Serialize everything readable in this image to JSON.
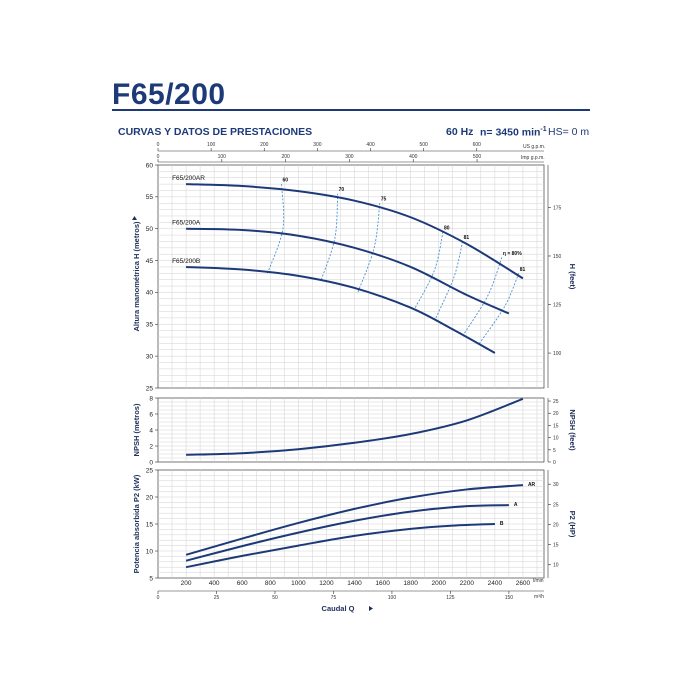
{
  "header": {
    "title": "F65/200",
    "subtitle": "CURVAS Y DATOS DE PRESTACIONES",
    "frequency": "60 Hz",
    "speed": "n= 3450 min",
    "speed_exp": "-1",
    "hs": "HS= 0 m"
  },
  "colors": {
    "curve": "#1d3a78",
    "efficiency": "#4a90d0",
    "grid": "#d2d2d2",
    "text": "#1d3a78"
  },
  "chart_data": [
    {
      "type": "line",
      "ylabel": "Altura manométrica H  (metros)",
      "y2label": "H (feet)",
      "ylim": [
        25,
        60
      ],
      "yticks": [
        25,
        30,
        35,
        40,
        45,
        50,
        55,
        60
      ],
      "y2ticks": [
        100,
        125,
        150,
        175
      ],
      "xlim": [
        0,
        2750
      ],
      "grid": true,
      "top_axes": {
        "us": {
          "label": "US g.p.m.",
          "ticks": [
            0,
            100,
            200,
            300,
            400,
            500,
            600
          ]
        },
        "imp": {
          "label": "Imp g.p.m.",
          "ticks": [
            0,
            100,
            200,
            300,
            400,
            500
          ]
        }
      },
      "series": [
        {
          "name": "F65/200AR",
          "x": [
            200,
            600,
            1000,
            1400,
            1800,
            2200,
            2600
          ],
          "y": [
            57.0,
            56.7,
            55.9,
            54.4,
            51.8,
            47.6,
            42.2
          ]
        },
        {
          "name": "F65/200A",
          "x": [
            200,
            600,
            1000,
            1400,
            1800,
            2200,
            2500
          ],
          "y": [
            50.0,
            49.8,
            48.9,
            47.0,
            44.0,
            39.6,
            36.7
          ]
        },
        {
          "name": "F65/200B",
          "x": [
            200,
            600,
            1000,
            1400,
            1800,
            2100,
            2400
          ],
          "y": [
            44.0,
            43.6,
            42.6,
            40.7,
            37.6,
            34.2,
            30.5
          ]
        }
      ],
      "efficiency_lines": [
        {
          "label": "60",
          "x": [
            880,
            890,
            780
          ],
          "y": [
            57.0,
            50.0,
            43.0
          ]
        },
        {
          "label": "70",
          "x": [
            1280,
            1260,
            1160
          ],
          "y": [
            55.5,
            48.5,
            41.8
          ]
        },
        {
          "label": "75",
          "x": [
            1580,
            1540,
            1420
          ],
          "y": [
            54.0,
            47.0,
            39.8
          ]
        },
        {
          "label": "80",
          "x": [
            2030,
            1970,
            1830
          ],
          "y": [
            49.5,
            43.5,
            37.5
          ]
        },
        {
          "label": "81",
          "x": [
            2170,
            2110,
            1980
          ],
          "y": [
            48.0,
            42.5,
            36.0
          ]
        },
        {
          "label": "η = 80%",
          "x": [
            2450,
            2350,
            2180
          ],
          "y": [
            45.5,
            39.5,
            33.5
          ]
        },
        {
          "label": "81",
          "x": [
            2570,
            2470,
            2290
          ],
          "y": [
            43.0,
            37.8,
            32.0
          ]
        }
      ]
    },
    {
      "type": "line",
      "ylabel": "NPSH  (metros)",
      "y2label": "NPSH  (feet)",
      "ylim": [
        0,
        8
      ],
      "yticks": [
        0,
        2,
        4,
        6,
        8
      ],
      "y2ticks": [
        0,
        5,
        10,
        15,
        20,
        25
      ],
      "xlim": [
        0,
        2750
      ],
      "grid": true,
      "series": [
        {
          "name": "NPSH",
          "x": [
            200,
            600,
            1000,
            1400,
            1800,
            2200,
            2600
          ],
          "y": [
            0.9,
            1.1,
            1.6,
            2.4,
            3.5,
            5.2,
            7.9
          ]
        }
      ]
    },
    {
      "type": "line",
      "ylabel": "Potencia absorbida P2  (kW)",
      "y2label": "P2  (HP)",
      "ylim": [
        5,
        25
      ],
      "yticks": [
        5,
        10,
        15,
        20,
        25
      ],
      "y2ticks": [
        10,
        15,
        20,
        25,
        30
      ],
      "xlim": [
        0,
        2750
      ],
      "xlabel": "Caudal  Q",
      "xunit": "l/min",
      "xunit2": "m³/h",
      "xticks": [
        200,
        400,
        600,
        800,
        1000,
        1200,
        1400,
        1600,
        1800,
        2000,
        2200,
        2400,
        2600
      ],
      "x2ticks": [
        0,
        25,
        50,
        75,
        100,
        125,
        150
      ],
      "grid": true,
      "series": [
        {
          "name": "AR",
          "x": [
            200,
            600,
            1000,
            1400,
            1800,
            2200,
            2600
          ],
          "y": [
            9.3,
            12.3,
            15.2,
            17.8,
            19.9,
            21.4,
            22.2
          ]
        },
        {
          "name": "A",
          "x": [
            200,
            600,
            1000,
            1400,
            1800,
            2200,
            2500
          ],
          "y": [
            8.2,
            10.9,
            13.4,
            15.6,
            17.3,
            18.3,
            18.5
          ]
        },
        {
          "name": "B",
          "x": [
            200,
            600,
            1000,
            1400,
            1800,
            2100,
            2400
          ],
          "y": [
            7.0,
            9.1,
            11.0,
            12.8,
            14.1,
            14.7,
            15.0
          ]
        }
      ]
    }
  ]
}
